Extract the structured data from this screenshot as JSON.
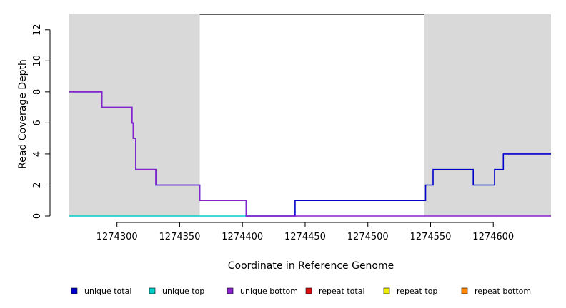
{
  "chart_data": {
    "type": "line",
    "xlabel": "Coordinate in Reference Genome",
    "ylabel": "Read Coverage Depth",
    "xlim": [
      1274262,
      1274646
    ],
    "ylim": [
      0,
      13
    ],
    "x_ticks": [
      1274300,
      1274350,
      1274400,
      1274450,
      1274500,
      1274550,
      1274600
    ],
    "y_ticks": [
      0,
      2,
      4,
      6,
      8,
      10,
      12
    ],
    "shaded_regions": [
      {
        "x0": 1274262,
        "x1": 1274366,
        "color": "#d9d9d9"
      },
      {
        "x0": 1274545,
        "x1": 1274646,
        "color": "#d9d9d9"
      }
    ],
    "top_bar": {
      "x0": 1274366,
      "x1": 1274545,
      "y": 13,
      "color": "#000000"
    },
    "series": [
      {
        "name": "unique total",
        "color": "#0000cc",
        "x": [
          1274262,
          1274288,
          1274288,
          1274312,
          1274312,
          1274313,
          1274313,
          1274315,
          1274315,
          1274331,
          1274331,
          1274366,
          1274366,
          1274403,
          1274403,
          1274442,
          1274442,
          1274546,
          1274546,
          1274552,
          1274552,
          1274584,
          1274584,
          1274601,
          1274601,
          1274608,
          1274608,
          1274646
        ],
        "y": [
          8,
          8,
          7,
          7,
          6,
          6,
          5,
          5,
          3,
          3,
          2,
          2,
          1,
          1,
          0,
          0,
          1,
          1,
          2,
          2,
          3,
          3,
          2,
          2,
          3,
          3,
          4,
          4
        ]
      },
      {
        "name": "unique top",
        "color": "#00cccc",
        "x": [
          1274262,
          1274403
        ],
        "y": [
          0,
          0
        ]
      },
      {
        "name": "unique bottom",
        "color": "#8822cc",
        "x": [
          1274262,
          1274288,
          1274288,
          1274312,
          1274312,
          1274313,
          1274313,
          1274315,
          1274315,
          1274331,
          1274331,
          1274366,
          1274366,
          1274403,
          1274403,
          1274646
        ],
        "y": [
          8,
          8,
          7,
          7,
          6,
          6,
          5,
          5,
          3,
          3,
          2,
          2,
          1,
          1,
          0,
          0
        ]
      },
      {
        "name": "repeat total",
        "color": "#dd1111",
        "x": [],
        "y": []
      },
      {
        "name": "repeat top",
        "color": "#eeee00",
        "x": [],
        "y": []
      },
      {
        "name": "repeat bottom",
        "color": "#ff8800",
        "x": [],
        "y": []
      }
    ]
  }
}
